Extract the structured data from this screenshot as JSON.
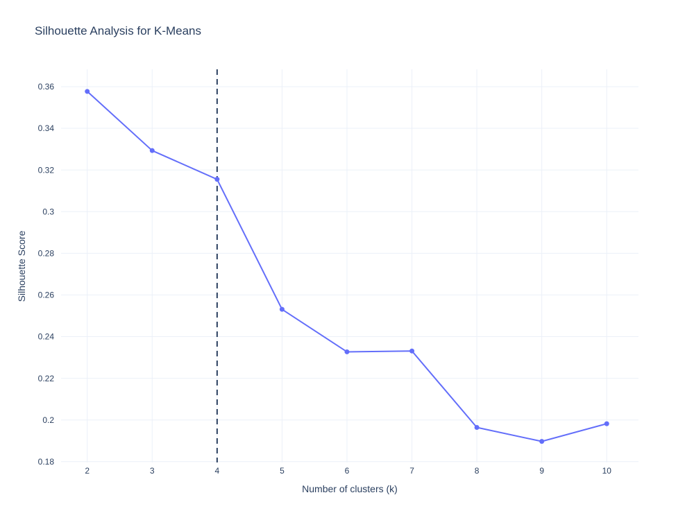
{
  "page": {
    "background": "#ffffff"
  },
  "chart_data": {
    "type": "line",
    "title": "Silhouette Analysis for K-Means",
    "xlabel": "Number of clusters (k)",
    "ylabel": "Silhouette Score",
    "x": [
      2,
      3,
      4,
      5,
      6,
      7,
      8,
      9,
      10
    ],
    "y": [
      0.3577,
      0.3293,
      0.3155,
      0.2531,
      0.2327,
      0.2331,
      0.1964,
      0.1897,
      0.1982
    ],
    "xlim": [
      1.597,
      10.489
    ],
    "ylim": [
      0.1796,
      0.3683
    ],
    "xticks": [
      2,
      3,
      4,
      5,
      6,
      7,
      8,
      9,
      10
    ],
    "xtick_labels": [
      "2",
      "3",
      "4",
      "5",
      "6",
      "7",
      "8",
      "9",
      "10"
    ],
    "yticks": [
      0.18,
      0.2,
      0.22,
      0.24,
      0.26,
      0.28,
      0.3,
      0.32,
      0.34,
      0.36
    ],
    "ytick_labels": [
      "0.18",
      "0.2",
      "0.22",
      "0.24",
      "0.26",
      "0.28",
      "0.3",
      "0.32",
      "0.34",
      "0.36"
    ],
    "grid": true,
    "legend": "none",
    "vline": {
      "x": 4,
      "dash": "dashed"
    },
    "marker_style": "circle",
    "colors": {
      "line": "#636efa",
      "marker": "#636efa",
      "grid": "#ebf0f8",
      "text": "#2a3f5f",
      "vline": "#2a3f5f",
      "plot_background": "#ffffff"
    }
  }
}
